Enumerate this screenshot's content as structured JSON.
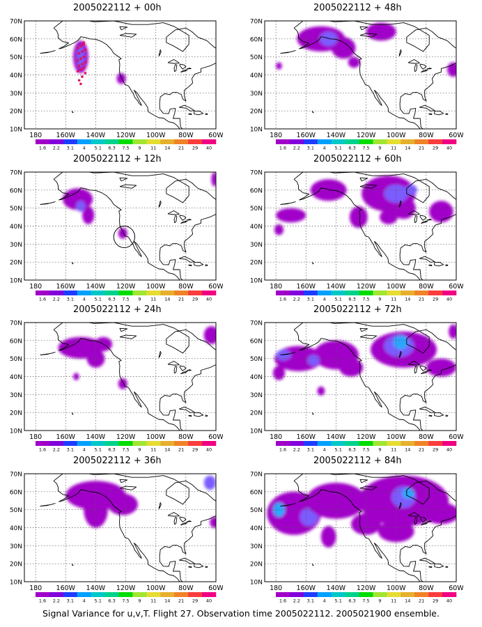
{
  "figure": {
    "caption": "Signal Variance for u,v,T. Flight 27. Observation time 2005022112. 2005021900 ensemble.",
    "lat_labels": [
      "70N",
      "60N",
      "50N",
      "40N",
      "30N",
      "20N",
      "10N"
    ],
    "lon_labels": [
      "180",
      "160W",
      "140W",
      "120W",
      "100W",
      "80W",
      "60W"
    ],
    "colorbar": {
      "labels": [
        "1.6",
        "2.2",
        "3.1",
        "4",
        "5.1",
        "6.3",
        "7.5",
        "9",
        "11",
        "14",
        "21",
        "29",
        "40"
      ],
      "colors": [
        "#a000c8",
        "#8200dc",
        "#1e3cff",
        "#00a0ff",
        "#00c8c8",
        "#00d28c",
        "#00dc00",
        "#a0e632",
        "#e6dc32",
        "#e6af2d",
        "#f08228",
        "#fa3c3c",
        "#f00082"
      ]
    }
  },
  "panels": [
    {
      "title": "2005022112 + 00h",
      "blobs": [
        [
          -150,
          50,
          5,
          9,
          1
        ],
        [
          -150,
          50,
          2.5,
          6,
          2
        ],
        [
          -123,
          38,
          3,
          3,
          1
        ]
      ],
      "dots": [
        [
          -152,
          55
        ],
        [
          -150,
          56
        ],
        [
          -148,
          57
        ],
        [
          -151,
          52
        ],
        [
          -149,
          53
        ],
        [
          -147,
          54
        ],
        [
          -152,
          48
        ],
        [
          -150,
          49
        ],
        [
          -148,
          50
        ],
        [
          -151,
          45
        ],
        [
          -149,
          46
        ],
        [
          -147,
          47
        ],
        [
          -152,
          42
        ],
        [
          -150,
          43
        ],
        [
          -148,
          44
        ],
        [
          -149,
          39
        ],
        [
          -151,
          37
        ],
        [
          -147,
          41
        ],
        [
          -150,
          35
        ],
        [
          -148,
          58
        ]
      ],
      "ring": null
    },
    {
      "title": "2005022112 + 48h",
      "blobs": [
        [
          -150,
          60,
          16,
          7,
          1
        ],
        [
          -135,
          55,
          8,
          6,
          1
        ],
        [
          -145,
          60,
          6,
          4,
          2
        ],
        [
          -128,
          47,
          4,
          3,
          1
        ],
        [
          -178,
          45,
          2,
          2,
          1
        ],
        [
          -62,
          43,
          4,
          4,
          1
        ],
        [
          -110,
          64,
          10,
          5,
          1
        ]
      ],
      "dots": [],
      "ring": null
    },
    {
      "title": "2005022112 + 12h",
      "blobs": [
        [
          -152,
          55,
          10,
          6,
          1
        ],
        [
          -145,
          46,
          4,
          5,
          1
        ],
        [
          -150,
          51,
          3,
          3,
          2
        ],
        [
          -122,
          36,
          3,
          3,
          1
        ],
        [
          -61,
          66,
          2,
          4,
          1
        ]
      ],
      "dots": [],
      "ring": [
        -121,
        34,
        7,
        6
      ]
    },
    {
      "title": "2005022112 + 60h",
      "blobs": [
        [
          -145,
          60,
          12,
          6,
          1
        ],
        [
          -105,
          58,
          18,
          10,
          1
        ],
        [
          -125,
          45,
          6,
          6,
          1
        ],
        [
          -170,
          46,
          10,
          4,
          1
        ],
        [
          -178,
          38,
          3,
          3,
          1
        ],
        [
          -95,
          50,
          8,
          6,
          1
        ],
        [
          -70,
          48,
          8,
          6,
          1
        ],
        [
          -100,
          58,
          8,
          5,
          2
        ],
        [
          -90,
          60,
          4,
          3,
          2
        ],
        [
          -105,
          45,
          6,
          4,
          1
        ]
      ],
      "dots": [],
      "ring": null
    },
    {
      "title": "2005022112 + 24h",
      "blobs": [
        [
          -150,
          56,
          15,
          6,
          1
        ],
        [
          -140,
          50,
          6,
          5,
          1
        ],
        [
          -153,
          40,
          2,
          2,
          1
        ],
        [
          -122,
          36,
          3,
          3,
          1
        ],
        [
          -63,
          63,
          5,
          5,
          1
        ],
        [
          -135,
          58,
          6,
          4,
          1
        ]
      ],
      "dots": [],
      "ring": null
    },
    {
      "title": "2005022112 + 72h",
      "blobs": [
        [
          -165,
          50,
          16,
          7,
          1
        ],
        [
          -178,
          42,
          4,
          4,
          1
        ],
        [
          -140,
          52,
          15,
          8,
          1
        ],
        [
          -95,
          55,
          22,
          10,
          1
        ],
        [
          -98,
          57,
          10,
          6,
          2
        ],
        [
          -97,
          59,
          5,
          4,
          3
        ],
        [
          -70,
          45,
          10,
          5,
          1
        ],
        [
          -150,
          32,
          2.5,
          2.5,
          1
        ],
        [
          -130,
          45,
          8,
          5,
          1
        ],
        [
          -175,
          52,
          5,
          3,
          2
        ],
        [
          -155,
          49,
          4,
          3,
          2
        ],
        [
          -62,
          65,
          3,
          4,
          1
        ]
      ],
      "dots": [],
      "ring": null
    },
    {
      "title": "2005022112 + 36h",
      "blobs": [
        [
          -140,
          58,
          20,
          8,
          1
        ],
        [
          -140,
          50,
          8,
          10,
          1
        ],
        [
          -122,
          53,
          10,
          6,
          1
        ],
        [
          -64,
          65,
          4,
          4,
          2
        ],
        [
          -61,
          43,
          3,
          3,
          1
        ]
      ],
      "dots": [],
      "ring": null
    },
    {
      "title": "2005022112 + 84h",
      "blobs": [
        [
          -168,
          48,
          18,
          12,
          1
        ],
        [
          -178,
          50,
          4,
          4,
          3
        ],
        [
          -158,
          46,
          6,
          5,
          2
        ],
        [
          -140,
          55,
          20,
          10,
          1
        ],
        [
          -95,
          55,
          30,
          14,
          1
        ],
        [
          -95,
          57,
          8,
          6,
          2
        ],
        [
          -92,
          59,
          4,
          3,
          3
        ],
        [
          -70,
          48,
          12,
          6,
          1
        ],
        [
          -145,
          35,
          5,
          6,
          1
        ],
        [
          -120,
          42,
          10,
          6,
          1
        ],
        [
          -100,
          38,
          12,
          6,
          1
        ]
      ],
      "dots": [],
      "ring": null
    }
  ]
}
